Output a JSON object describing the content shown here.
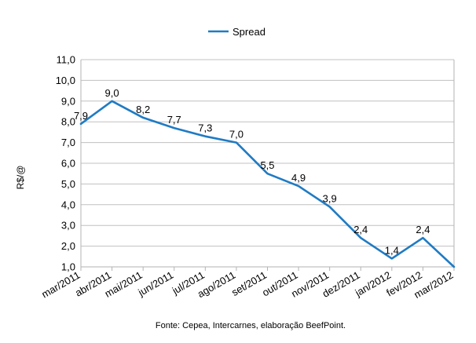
{
  "chart_data": {
    "type": "line",
    "title": "",
    "xlabel": "",
    "ylabel": "R$/@",
    "ylim": [
      1.0,
      11.0
    ],
    "ytick_step": 1.0,
    "ytick_labels": [
      "1,0",
      "2,0",
      "3,0",
      "4,0",
      "5,0",
      "6,0",
      "7,0",
      "8,0",
      "9,0",
      "10,0",
      "11,0"
    ],
    "grid": "horizontal",
    "legend_position": "top-center",
    "categories": [
      "mar/2011",
      "abr/2011",
      "mai/2011",
      "jun/2011",
      "jul/2011",
      "ago/2011",
      "set/2011",
      "out/2011",
      "nov/2011",
      "dez/2011",
      "jan/2012",
      "fev/2012",
      "mar/2012"
    ],
    "series": [
      {
        "name": "Spread",
        "color": "#1f7bc4",
        "values": [
          7.9,
          9.0,
          8.2,
          7.7,
          7.3,
          7.0,
          5.5,
          4.9,
          3.9,
          2.4,
          1.4,
          2.4,
          1.0
        ],
        "data_labels": [
          "7,9",
          "9,0",
          "8,2",
          "7,7",
          "7,3",
          "7,0",
          "5,5",
          "4,9",
          "3,9",
          "2,4",
          "1,4",
          "2,4",
          ""
        ]
      }
    ],
    "source_note": "Fonte: Cepea, Intercarnes, elaboração BeefPoint."
  }
}
